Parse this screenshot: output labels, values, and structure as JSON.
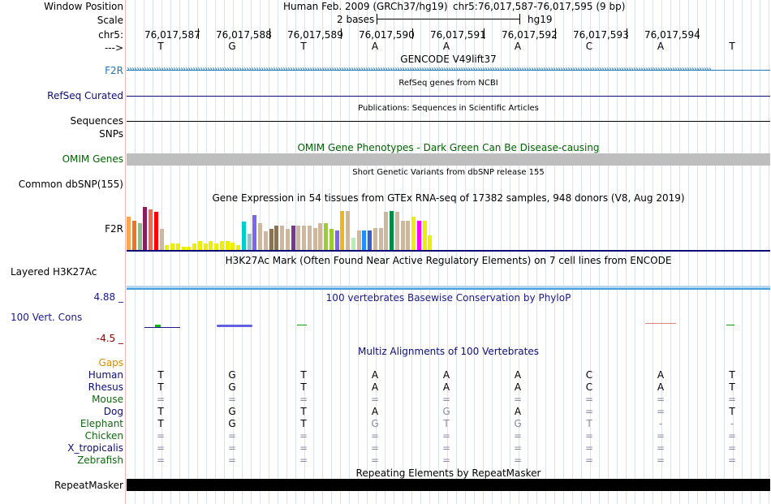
{
  "header": {
    "window_position_label": "Window Position",
    "assembly_text": "Human Feb. 2009 (GRCh37/hg19)",
    "position_text": "chr5:76,017,587-76,017,595 (9 bp)",
    "scale_label": "Scale",
    "scale_text": "2 bases",
    "scale_db": "hg19",
    "chrom_label": "chr5:",
    "strand_label": "--->",
    "coords": [
      "76,017,587",
      "76,017,588",
      "76,017,589",
      "76,017,590",
      "76,017,591",
      "76,017,592",
      "76,017,593",
      "76,017,594"
    ],
    "bases": [
      "T",
      "G",
      "T",
      "A",
      "A",
      "A",
      "C",
      "A",
      "T"
    ]
  },
  "tracks": {
    "gencode": {
      "title": "GENCODE V49lift37",
      "label": "F2R",
      "color": "#1f77b4"
    },
    "refseq": {
      "title": "RefSeq genes from NCBI",
      "label": "RefSeq Curated",
      "color": "#0c0c78"
    },
    "publications": {
      "title": "Publications: Sequences in Scientific Articles",
      "label1": "Sequences",
      "label2": "SNPs"
    },
    "omim": {
      "title": "OMIM Gene Phenotypes - Dark Green Can Be Disease-causing",
      "label": "OMIM Genes",
      "color": "#006400"
    },
    "dbsnp": {
      "title": "Short Genetic Variants from dbSNP release 155",
      "label": "Common dbSNP(155)"
    },
    "gtex": {
      "title": "Gene Expression in 54 tissues from GTEx RNA-seq of 17382 samples, 948 donors (V8, Aug 2019)",
      "label": "F2R",
      "bar_values": [
        0.73,
        0.65,
        0.59,
        0.95,
        0.89,
        0.84,
        0.46,
        0.11,
        0.14,
        0.14,
        0.08,
        0.08,
        0.14,
        0.19,
        0.14,
        0.19,
        0.14,
        0.19,
        0.19,
        0.16,
        0.11,
        0.62,
        0.35,
        0.76,
        0.59,
        0.41,
        0.46,
        0.54,
        0.54,
        0.46,
        0.54,
        0.54,
        0.54,
        0.54,
        0.49,
        0.59,
        0.59,
        0.46,
        0.43,
        0.86,
        0.86,
        0.27,
        0.43,
        0.43,
        0.43,
        0.49,
        0.49,
        0.84,
        0.86,
        0.84,
        0.65,
        0.65,
        0.73,
        0.65,
        0.65,
        0.32
      ],
      "bar_colors": [
        "#ffa54f",
        "#ee7621",
        "#8fbc8f",
        "#8b1c62",
        "#ee6a50",
        "#ff0000",
        "#cdb79e",
        "#eeee00",
        "#eeee00",
        "#eeee00",
        "#eeee00",
        "#eeee00",
        "#eeee00",
        "#eeee00",
        "#eeee00",
        "#eeee00",
        "#eeee00",
        "#eeee00",
        "#eeee00",
        "#eeee00",
        "#eeee00",
        "#00cdcd",
        "#9ac0cd",
        "#7a67ee",
        "#cdb79e",
        "#cdb79e",
        "#8b7355",
        "#8b7355",
        "#cdb79e",
        "#cdb79e",
        "#7a378b",
        "#cdb79e",
        "#cdb79e",
        "#cdb79e",
        "#cdb79e",
        "#cdb79e",
        "#9acd32",
        "#9acd32",
        "#7a67ee",
        "#eeb422",
        "#cdb79e",
        "#b4eeb4",
        "#cdb79e",
        "#1e90ff",
        "#3a5fcd",
        "#cdb79e",
        "#cdb79e",
        "#cdb79e",
        "#008b45",
        "#cdb79e",
        "#cdb79e",
        "#cdb79e",
        "#eeee00",
        "#ff00ff",
        "#eeee00",
        "#eeee00"
      ]
    },
    "h3k27ac": {
      "title": "H3K27Ac Mark (Often Found Near Active Regulatory Elements) on 7 cell lines from ENCODE",
      "label": "Layered H3K27Ac"
    },
    "phylop": {
      "title": "100 vertebrates Basewise Conservation by PhyloP",
      "label": "100 Vert. Cons",
      "max_label": "4.88 _",
      "min_label": "-4.5 _",
      "color": "#1a1a8c"
    },
    "multiz": {
      "title": "Multiz Alignments of 100 Vertebrates",
      "gaps_label": "Gaps",
      "species": [
        {
          "name": "Human",
          "color": "#0c0c78",
          "bases": [
            "T",
            "G",
            "T",
            "A",
            "A",
            "A",
            "C",
            "A",
            "T"
          ]
        },
        {
          "name": "Rhesus",
          "color": "#0c0c78",
          "bases": [
            "T",
            "G",
            "T",
            "A",
            "A",
            "A",
            "C",
            "A",
            "T"
          ]
        },
        {
          "name": "Mouse",
          "color": "#116611",
          "bases": [
            "=",
            "=",
            "=",
            "=",
            "=",
            "=",
            "=",
            "=",
            "="
          ]
        },
        {
          "name": "Dog",
          "color": "#0c0c78",
          "bases": [
            "T",
            "G",
            "T",
            "A",
            "G",
            "A",
            "=",
            "=",
            "T"
          ]
        },
        {
          "name": "Elephant",
          "color": "#116611",
          "bases": [
            "T",
            "G",
            "T",
            "G",
            "T",
            "G",
            "T",
            "-",
            "-"
          ]
        },
        {
          "name": "Chicken",
          "color": "#116611",
          "bases": [
            "=",
            "=",
            "=",
            "=",
            "=",
            "=",
            "=",
            "=",
            "="
          ]
        },
        {
          "name": "X_tropicalis",
          "color": "#0c0c78",
          "bases": [
            "=",
            "=",
            "=",
            "=",
            "=",
            "=",
            "=",
            "=",
            "="
          ]
        },
        {
          "name": "Zebrafish",
          "color": "#116611",
          "bases": [
            "=",
            "=",
            "=",
            "=",
            "=",
            "=",
            "=",
            "=",
            "="
          ]
        }
      ]
    },
    "repeatmasker": {
      "title": "Repeating Elements by RepeatMasker",
      "label": "RepeatMasker"
    }
  }
}
